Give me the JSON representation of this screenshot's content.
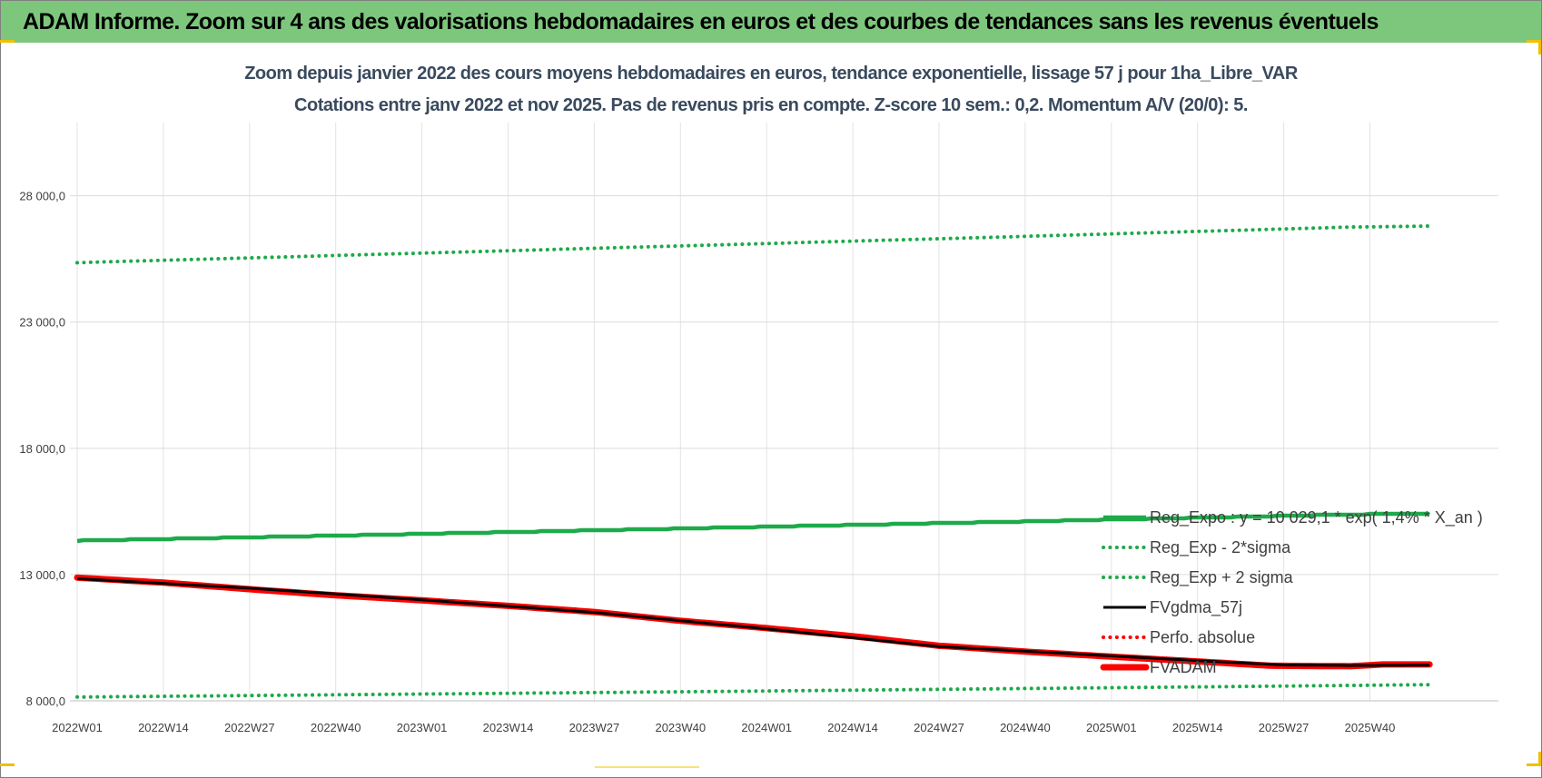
{
  "banner": {
    "title": "ADAM Informe. Zoom sur 4 ans des valorisations hebdomadaires en euros et des courbes de tendances sans les revenus éventuels"
  },
  "chart_data": {
    "type": "line",
    "title": "Zoom depuis janvier 2022 des cours moyens hebdomadaires en euros, tendance exponentielle, lissage 57 j pour 1ha_Libre_VAR",
    "subtitle": "Cotations entre janv 2022 et nov 2025. Pas de revenus pris en compte. Z-score 10 sem.: 0,2. Momentum A/V (20/0): 5.",
    "xlabel": "",
    "ylabel": "",
    "ylim": [
      8000,
      30000
    ],
    "yticks": [
      8000,
      13000,
      18000,
      23000,
      28000
    ],
    "ytick_labels": [
      "8 000,0",
      "13 000,0",
      "18 000,0",
      "23 000,0",
      "28 000,0"
    ],
    "x_tick_labels": [
      "2022W01",
      "2022W14",
      "2022W27",
      "2022W40",
      "2023W01",
      "2023W14",
      "2023W27",
      "2023W40",
      "2024W01",
      "2024W14",
      "2024W27",
      "2024W40",
      "2025W01",
      "2025W14",
      "2025W27",
      "2025W40"
    ],
    "x_tick_index": [
      0,
      13,
      26,
      39,
      52,
      65,
      78,
      91,
      104,
      117,
      130,
      143,
      156,
      169,
      182,
      195
    ],
    "n_weeks": 205,
    "grid": "vertical-and-horizontal",
    "legend_position": "bottom-right",
    "series": [
      {
        "name": "Reg_Expo : y = 10 029,1 * exp( 1,4% * X_an )",
        "color": "#1eaa4a",
        "style": "solid",
        "x": [
          0,
          48,
          96,
          144,
          192,
          204
        ],
        "values": [
          14340,
          14590,
          14850,
          15110,
          15380,
          15410
        ]
      },
      {
        "name": "Reg_Exp - 2*sigma",
        "color": "#1eaa4a",
        "style": "dotted",
        "x": [
          0,
          48,
          96,
          144,
          192,
          204
        ],
        "values": [
          8150,
          8260,
          8370,
          8490,
          8610,
          8640
        ]
      },
      {
        "name": "Reg_Exp + 2 sigma",
        "color": "#1eaa4a",
        "style": "dotted",
        "x": [
          0,
          48,
          96,
          144,
          192,
          204
        ],
        "values": [
          25350,
          25700,
          26050,
          26400,
          26760,
          26800
        ]
      },
      {
        "name": "FVgdma_57j",
        "color": "#000000",
        "style": "solid",
        "x": [
          0,
          26,
          52,
          78,
          104,
          130,
          156,
          172,
          182,
          192,
          204
        ],
        "values": [
          12840,
          12460,
          12000,
          11500,
          10850,
          10150,
          9780,
          9550,
          9420,
          9400,
          9410
        ]
      },
      {
        "name": "Perfo. absolue",
        "color": "#ff0000",
        "style": "dotted",
        "x": [],
        "values": []
      },
      {
        "name": "FVADAM",
        "color": "#ff0000",
        "style": "solid",
        "x": [
          0,
          13,
          26,
          39,
          52,
          65,
          78,
          91,
          104,
          117,
          130,
          143,
          156,
          169,
          180,
          192,
          197,
          204
        ],
        "values": [
          12880,
          12680,
          12420,
          12180,
          11980,
          11760,
          11520,
          11170,
          10880,
          10560,
          10180,
          9950,
          9750,
          9560,
          9390,
          9370,
          9440,
          9440
        ]
      }
    ]
  }
}
